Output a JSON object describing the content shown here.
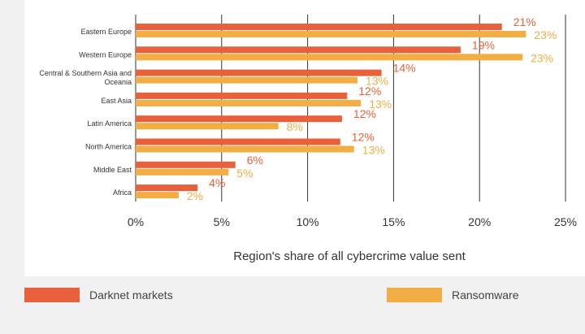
{
  "chart_data": {
    "type": "bar",
    "orientation": "horizontal",
    "categories": [
      "Eastern Europe",
      "Western Europe",
      "Central & Southern Asia and Oceania",
      "East Asia",
      "Latin America",
      "North America",
      "Middle East",
      "Africa"
    ],
    "series": [
      {
        "name": "Darknet markets",
        "values": [
          21.3,
          18.9,
          14.3,
          12.3,
          12.0,
          11.9,
          5.8,
          3.6
        ],
        "labels": [
          "21%",
          "19%",
          "14%",
          "12%",
          "12%",
          "12%",
          "6%",
          "4%"
        ]
      },
      {
        "name": "Ransomware",
        "values": [
          22.7,
          22.5,
          12.9,
          13.1,
          8.3,
          12.7,
          5.4,
          2.5
        ],
        "labels": [
          "23%",
          "23%",
          "13%",
          "13%",
          "8%",
          "13%",
          "5%",
          "2%"
        ]
      }
    ],
    "xlabel": "Region's share of all cybercrime value sent",
    "xlim": [
      0,
      25
    ],
    "xticks": [
      0,
      5,
      10,
      15,
      20,
      25
    ],
    "xtick_labels": [
      "0%",
      "5%",
      "10%",
      "15%",
      "20%",
      "25%"
    ],
    "grid": true,
    "legend_placement": "bottom"
  },
  "colors": {
    "darknet": "#e8613a",
    "ransomware": "#f2ad45",
    "grid": "#333333",
    "text": "#333333"
  },
  "legend": {
    "darknet_label": "Darknet markets",
    "ransomware_label": "Ransomware"
  }
}
